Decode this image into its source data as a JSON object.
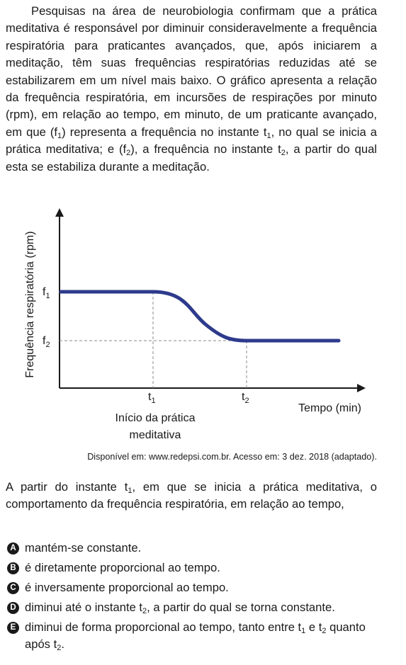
{
  "intro": {
    "p1": "Pesquisas na área de neurobiologia confirmam que a prática meditativa é responsável por diminuir consideravelmente a frequência respiratória para praticantes avançados, que, após iniciarem a meditação, têm suas frequências respiratórias reduzidas até se estabilizarem em um nível mais baixo. O gráfico apresenta a relação da frequência respiratória, em incursões de respirações por minuto (rpm), em relação ao tempo, em minuto, de um praticante avançado, em que (f",
    "sub1": "1",
    "p2": ") representa a frequência no instante t",
    "sub2": "1",
    "p3": ", no qual se inicia a prática meditativa; e (f",
    "sub3": "2",
    "p4": "), a frequência no instante t",
    "sub4": "2",
    "p5": ", a partir do qual esta se estabiliza durante a meditação."
  },
  "chart_data": {
    "type": "line",
    "ylabel": "Frequência respiratória (rpm)",
    "xlabel": "Tempo (min)",
    "y_ticks": [
      {
        "main": "f",
        "sub": "1"
      },
      {
        "main": "f",
        "sub": "2"
      }
    ],
    "x_ticks": [
      {
        "main": "t",
        "sub": "1"
      },
      {
        "main": "t",
        "sub": "2"
      }
    ],
    "annotation_line1": "Início da prática",
    "annotation_line2": "meditativa",
    "series": [
      {
        "color": "#2e3a8c",
        "description_points": [
          {
            "x": "0",
            "y": "f1"
          },
          {
            "x": "t1",
            "y": "f1"
          },
          {
            "x": "t2",
            "y": "f2"
          },
          {
            "x": "end",
            "y": "f2"
          }
        ]
      }
    ],
    "grid": false
  },
  "source": "Disponível em: www.redepsi.com.br. Acesso em: 3 dez. 2018 (adaptado).",
  "question": {
    "q1": "A partir do instante t",
    "sub1": "1",
    "q2": ", em que se inicia a prática meditativa, o comportamento da frequência respiratória, em relação ao tempo,"
  },
  "options": [
    {
      "letter": "A",
      "text": "mantém-se constante."
    },
    {
      "letter": "B",
      "text": "é diretamente proporcional ao tempo."
    },
    {
      "letter": "C",
      "text": "é inversamente proporcional ao tempo."
    },
    {
      "letter": "D",
      "t1": "diminui até o instante t",
      "s1": "2",
      "t2": ", a partir do qual se torna constante."
    },
    {
      "letter": "E",
      "t1": "diminui de forma proporcional ao tempo, tanto entre t",
      "s1": "1",
      "t2": " e t",
      "s2": "2",
      "t3": " quanto após t",
      "s3": "2",
      "t4": "."
    }
  ]
}
